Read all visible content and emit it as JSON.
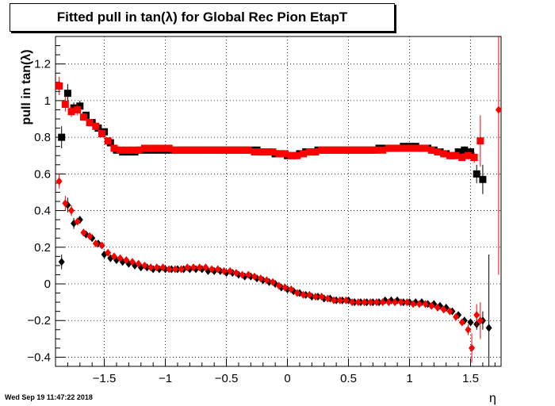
{
  "footer_date": "Wed Sep 19 11:47:22 2018",
  "chart_data": {
    "type": "scatter",
    "title": "Fitted pull in tan(λ) for Global Rec Pion EtapT",
    "xlabel": "η",
    "ylabel": "pull in tan(λ)",
    "xlim": [
      -1.9,
      1.75
    ],
    "ylim": [
      -0.45,
      1.35
    ],
    "x_ticks": [
      -1.5,
      -1,
      -0.5,
      0,
      0.5,
      1,
      1.5
    ],
    "x_tick_labels": [
      "−1.5",
      "−1",
      "−0.5",
      "0",
      "0.5",
      "1",
      "1.5"
    ],
    "y_ticks": [
      -0.4,
      -0.2,
      0,
      0.2,
      0.4,
      0.6,
      0.8,
      1,
      1.2
    ],
    "y_tick_labels": [
      "−0.4",
      "−0.2",
      "0",
      "0.2",
      "0.4",
      "0.6",
      "0.8",
      "1",
      "1.2"
    ],
    "grid": true,
    "series": [
      {
        "marker": "square",
        "color": "#000000",
        "x": [
          -1.85,
          -1.8,
          -1.75,
          -1.7,
          -1.65,
          -1.6,
          -1.55,
          -1.5,
          -1.45,
          -1.4,
          -1.35,
          -1.3,
          -1.25,
          -1.2,
          -1.15,
          -1.1,
          -1.05,
          -1.0,
          -0.95,
          -0.9,
          -0.85,
          -0.8,
          -0.75,
          -0.7,
          -0.65,
          -0.6,
          -0.55,
          -0.5,
          -0.45,
          -0.4,
          -0.35,
          -0.3,
          -0.25,
          -0.2,
          -0.15,
          -0.1,
          -0.05,
          0.0,
          0.05,
          0.1,
          0.15,
          0.2,
          0.25,
          0.3,
          0.35,
          0.4,
          0.45,
          0.5,
          0.55,
          0.6,
          0.65,
          0.7,
          0.75,
          0.8,
          0.85,
          0.9,
          0.95,
          1.0,
          1.05,
          1.1,
          1.15,
          1.2,
          1.25,
          1.3,
          1.35,
          1.4,
          1.45,
          1.5,
          1.55,
          1.6
        ],
        "y": [
          0.8,
          1.04,
          0.96,
          0.97,
          0.92,
          0.88,
          0.85,
          0.83,
          0.77,
          0.73,
          0.72,
          0.72,
          0.72,
          0.73,
          0.73,
          0.73,
          0.73,
          0.73,
          0.73,
          0.73,
          0.73,
          0.73,
          0.73,
          0.73,
          0.73,
          0.73,
          0.73,
          0.73,
          0.73,
          0.73,
          0.73,
          0.73,
          0.73,
          0.72,
          0.72,
          0.71,
          0.71,
          0.7,
          0.7,
          0.71,
          0.72,
          0.72,
          0.73,
          0.73,
          0.73,
          0.73,
          0.73,
          0.73,
          0.73,
          0.73,
          0.73,
          0.73,
          0.74,
          0.74,
          0.74,
          0.74,
          0.75,
          0.75,
          0.75,
          0.74,
          0.74,
          0.73,
          0.72,
          0.71,
          0.7,
          0.72,
          0.73,
          0.72,
          0.6,
          0.57
        ],
        "err": [
          0.06,
          0.05,
          0.03,
          0.03,
          0.02,
          0.02,
          0.02,
          0.01,
          0.01,
          0.01,
          0.01,
          0.01,
          0.01,
          0.01,
          0.01,
          0.01,
          0.01,
          0.01,
          0.01,
          0.01,
          0.01,
          0.01,
          0.01,
          0.01,
          0.01,
          0.01,
          0.01,
          0.01,
          0.01,
          0.01,
          0.01,
          0.01,
          0.01,
          0.01,
          0.01,
          0.01,
          0.01,
          0.01,
          0.01,
          0.01,
          0.01,
          0.01,
          0.01,
          0.01,
          0.01,
          0.01,
          0.01,
          0.01,
          0.01,
          0.01,
          0.01,
          0.01,
          0.01,
          0.01,
          0.01,
          0.01,
          0.01,
          0.01,
          0.01,
          0.01,
          0.01,
          0.01,
          0.01,
          0.01,
          0.01,
          0.01,
          0.02,
          0.02,
          0.05,
          0.08
        ]
      },
      {
        "marker": "square",
        "color": "#ff0000",
        "x": [
          -1.87,
          -1.82,
          -1.77,
          -1.72,
          -1.67,
          -1.62,
          -1.57,
          -1.52,
          -1.47,
          -1.42,
          -1.37,
          -1.32,
          -1.27,
          -1.22,
          -1.17,
          -1.12,
          -1.07,
          -1.02,
          -0.97,
          -0.92,
          -0.87,
          -0.82,
          -0.77,
          -0.72,
          -0.67,
          -0.62,
          -0.57,
          -0.52,
          -0.47,
          -0.42,
          -0.37,
          -0.32,
          -0.27,
          -0.22,
          -0.17,
          -0.12,
          -0.07,
          -0.02,
          0.03,
          0.08,
          0.13,
          0.18,
          0.23,
          0.28,
          0.33,
          0.38,
          0.43,
          0.48,
          0.53,
          0.58,
          0.63,
          0.68,
          0.73,
          0.78,
          0.83,
          0.88,
          0.93,
          0.98,
          1.03,
          1.08,
          1.13,
          1.18,
          1.23,
          1.28,
          1.33,
          1.38,
          1.43,
          1.48,
          1.53,
          1.58
        ],
        "y": [
          1.08,
          0.98,
          0.94,
          0.95,
          0.91,
          0.88,
          0.86,
          0.82,
          0.78,
          0.74,
          0.73,
          0.73,
          0.73,
          0.73,
          0.74,
          0.74,
          0.74,
          0.74,
          0.74,
          0.73,
          0.73,
          0.73,
          0.73,
          0.73,
          0.73,
          0.73,
          0.73,
          0.73,
          0.73,
          0.73,
          0.73,
          0.73,
          0.72,
          0.72,
          0.72,
          0.72,
          0.71,
          0.71,
          0.7,
          0.7,
          0.71,
          0.72,
          0.72,
          0.73,
          0.73,
          0.73,
          0.73,
          0.73,
          0.73,
          0.73,
          0.73,
          0.73,
          0.73,
          0.73,
          0.74,
          0.74,
          0.74,
          0.74,
          0.74,
          0.74,
          0.74,
          0.73,
          0.72,
          0.71,
          0.7,
          0.7,
          0.69,
          0.7,
          0.69,
          0.78
        ],
        "err": [
          0.05,
          0.04,
          0.03,
          0.03,
          0.02,
          0.02,
          0.02,
          0.01,
          0.01,
          0.01,
          0.01,
          0.01,
          0.01,
          0.01,
          0.01,
          0.01,
          0.01,
          0.01,
          0.01,
          0.01,
          0.01,
          0.01,
          0.01,
          0.01,
          0.01,
          0.01,
          0.01,
          0.01,
          0.01,
          0.01,
          0.01,
          0.01,
          0.01,
          0.01,
          0.01,
          0.01,
          0.01,
          0.01,
          0.01,
          0.01,
          0.01,
          0.01,
          0.01,
          0.01,
          0.01,
          0.01,
          0.01,
          0.01,
          0.01,
          0.01,
          0.01,
          0.01,
          0.01,
          0.01,
          0.01,
          0.01,
          0.01,
          0.01,
          0.01,
          0.01,
          0.01,
          0.01,
          0.01,
          0.01,
          0.01,
          0.01,
          0.02,
          0.02,
          0.03,
          0.14
        ]
      },
      {
        "marker": "diamond",
        "color": "#000000",
        "x": [
          -1.85,
          -1.8,
          -1.75,
          -1.7,
          -1.65,
          -1.6,
          -1.55,
          -1.5,
          -1.45,
          -1.4,
          -1.35,
          -1.3,
          -1.25,
          -1.2,
          -1.15,
          -1.1,
          -1.05,
          -1.0,
          -0.95,
          -0.9,
          -0.85,
          -0.8,
          -0.75,
          -0.7,
          -0.65,
          -0.6,
          -0.55,
          -0.5,
          -0.45,
          -0.4,
          -0.35,
          -0.3,
          -0.25,
          -0.2,
          -0.15,
          -0.1,
          -0.05,
          0.0,
          0.05,
          0.1,
          0.15,
          0.2,
          0.25,
          0.3,
          0.35,
          0.4,
          0.45,
          0.5,
          0.55,
          0.6,
          0.65,
          0.7,
          0.75,
          0.8,
          0.85,
          0.9,
          0.95,
          1.0,
          1.05,
          1.1,
          1.15,
          1.2,
          1.25,
          1.3,
          1.35,
          1.4,
          1.45,
          1.5,
          1.55,
          1.6,
          1.65
        ],
        "y": [
          0.12,
          0.43,
          0.33,
          0.35,
          0.27,
          0.25,
          0.22,
          0.16,
          0.14,
          0.13,
          0.12,
          0.11,
          0.1,
          0.09,
          0.09,
          0.08,
          0.08,
          0.08,
          0.08,
          0.08,
          0.08,
          0.08,
          0.08,
          0.08,
          0.07,
          0.07,
          0.07,
          0.06,
          0.06,
          0.05,
          0.04,
          0.04,
          0.03,
          0.02,
          0.01,
          0.0,
          -0.02,
          -0.03,
          -0.04,
          -0.05,
          -0.06,
          -0.07,
          -0.07,
          -0.08,
          -0.08,
          -0.09,
          -0.09,
          -0.09,
          -0.1,
          -0.1,
          -0.1,
          -0.1,
          -0.1,
          -0.09,
          -0.09,
          -0.09,
          -0.1,
          -0.1,
          -0.1,
          -0.1,
          -0.11,
          -0.11,
          -0.12,
          -0.13,
          -0.15,
          -0.17,
          -0.2,
          -0.21,
          -0.22,
          -0.2,
          -0.24
        ],
        "err": [
          0.04,
          0.04,
          0.03,
          0.02,
          0.02,
          0.02,
          0.01,
          0.01,
          0.01,
          0.01,
          0.01,
          0.01,
          0.01,
          0.01,
          0.01,
          0.01,
          0.01,
          0.01,
          0.01,
          0.01,
          0.01,
          0.01,
          0.01,
          0.01,
          0.01,
          0.01,
          0.01,
          0.01,
          0.01,
          0.01,
          0.01,
          0.01,
          0.01,
          0.01,
          0.01,
          0.01,
          0.01,
          0.01,
          0.01,
          0.01,
          0.01,
          0.01,
          0.01,
          0.01,
          0.01,
          0.01,
          0.01,
          0.01,
          0.01,
          0.01,
          0.01,
          0.01,
          0.01,
          0.01,
          0.01,
          0.01,
          0.01,
          0.01,
          0.01,
          0.01,
          0.01,
          0.01,
          0.01,
          0.01,
          0.01,
          0.01,
          0.02,
          0.02,
          0.03,
          0.05,
          0.4
        ]
      },
      {
        "marker": "diamond",
        "color": "#ff0000",
        "x": [
          -1.87,
          -1.82,
          -1.77,
          -1.72,
          -1.67,
          -1.62,
          -1.57,
          -1.52,
          -1.47,
          -1.42,
          -1.37,
          -1.32,
          -1.27,
          -1.22,
          -1.17,
          -1.12,
          -1.07,
          -1.02,
          -0.97,
          -0.92,
          -0.87,
          -0.82,
          -0.77,
          -0.72,
          -0.67,
          -0.62,
          -0.57,
          -0.52,
          -0.47,
          -0.42,
          -0.37,
          -0.32,
          -0.27,
          -0.22,
          -0.17,
          -0.12,
          -0.07,
          -0.02,
          0.03,
          0.08,
          0.13,
          0.18,
          0.23,
          0.28,
          0.33,
          0.38,
          0.43,
          0.48,
          0.53,
          0.58,
          0.63,
          0.68,
          0.73,
          0.78,
          0.83,
          0.88,
          0.93,
          0.98,
          1.03,
          1.08,
          1.13,
          1.18,
          1.23,
          1.28,
          1.33,
          1.38,
          1.43,
          1.48,
          1.51,
          1.55,
          1.58,
          1.73
        ],
        "y": [
          0.56,
          0.44,
          0.4,
          0.34,
          0.28,
          0.26,
          0.22,
          0.21,
          0.17,
          0.15,
          0.14,
          0.13,
          0.12,
          0.11,
          0.1,
          0.09,
          0.09,
          0.09,
          0.08,
          0.08,
          0.08,
          0.09,
          0.09,
          0.09,
          0.09,
          0.08,
          0.08,
          0.07,
          0.07,
          0.06,
          0.05,
          0.05,
          0.04,
          0.03,
          0.02,
          0.01,
          -0.01,
          -0.02,
          -0.03,
          -0.05,
          -0.06,
          -0.06,
          -0.07,
          -0.07,
          -0.08,
          -0.09,
          -0.09,
          -0.09,
          -0.1,
          -0.1,
          -0.1,
          -0.1,
          -0.1,
          -0.1,
          -0.1,
          -0.1,
          -0.1,
          -0.1,
          -0.11,
          -0.11,
          -0.11,
          -0.12,
          -0.13,
          -0.14,
          -0.15,
          -0.18,
          -0.21,
          -0.25,
          -0.35,
          -0.17,
          -0.2,
          0.95
        ],
        "err": [
          0.04,
          0.04,
          0.03,
          0.02,
          0.02,
          0.02,
          0.01,
          0.01,
          0.01,
          0.01,
          0.01,
          0.01,
          0.01,
          0.01,
          0.01,
          0.01,
          0.01,
          0.01,
          0.01,
          0.01,
          0.01,
          0.01,
          0.01,
          0.01,
          0.01,
          0.01,
          0.01,
          0.01,
          0.01,
          0.01,
          0.01,
          0.01,
          0.01,
          0.01,
          0.01,
          0.01,
          0.01,
          0.01,
          0.01,
          0.01,
          0.01,
          0.01,
          0.01,
          0.01,
          0.01,
          0.01,
          0.01,
          0.01,
          0.01,
          0.01,
          0.01,
          0.01,
          0.01,
          0.01,
          0.01,
          0.01,
          0.01,
          0.01,
          0.01,
          0.01,
          0.01,
          0.01,
          0.01,
          0.01,
          0.01,
          0.01,
          0.02,
          0.03,
          0.08,
          0.06,
          0.1,
          0.9
        ]
      }
    ]
  }
}
